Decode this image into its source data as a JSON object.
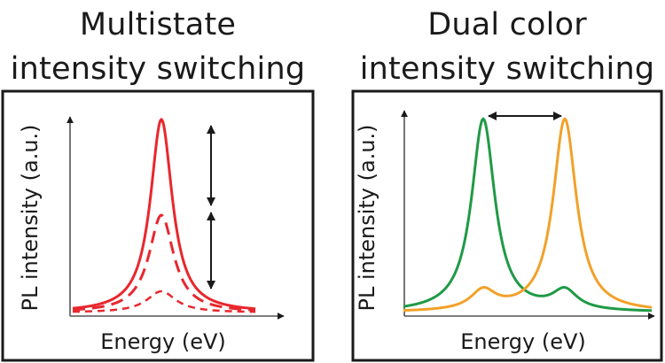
{
  "panels": {
    "left": {
      "title_line1": "Multistate",
      "title_line2": "intensity switching",
      "xlabel": "Energy (eV)",
      "ylabel": "PL intensity (a.u.)",
      "curve_color": "#e8272d"
    },
    "right": {
      "title_line1": "Dual color",
      "title_line2": "intensity switching",
      "xlabel": "Energy (eV)",
      "ylabel": "PL intensity (a.u.)",
      "curve_color_1": "#1f9a46",
      "curve_color_2": "#f2a12a"
    }
  }
}
